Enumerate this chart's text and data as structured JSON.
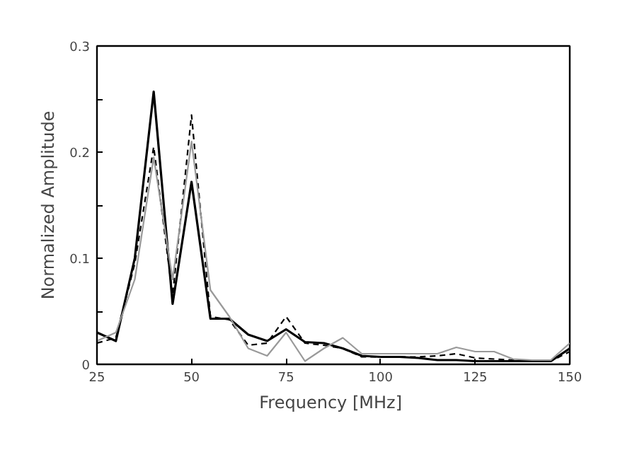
{
  "chart_data": {
    "type": "line",
    "xlabel": "Frequency  [MHz]",
    "ylabel": "Normalized Amplitude",
    "x": [
      25,
      30,
      35,
      40,
      45,
      50,
      55,
      60,
      65,
      70,
      75,
      80,
      85,
      90,
      95,
      100,
      105,
      110,
      115,
      120,
      125,
      130,
      135,
      140,
      145,
      150
    ],
    "xlim": [
      25,
      150
    ],
    "xticks": [
      25,
      50,
      75,
      100,
      125,
      150
    ],
    "ylim": [
      0,
      0.3
    ],
    "yticks": [
      0,
      {
        "value": 0.05,
        "label": null
      },
      0.1,
      {
        "value": 0.15,
        "label": null
      },
      0.2,
      {
        "value": 0.25,
        "label": null
      },
      0.3
    ],
    "grid": false,
    "marker": "none",
    "series": [
      {
        "color": "#000000",
        "line_style": "solid",
        "values": [
          0.03,
          0.022,
          0.1,
          0.257,
          0.057,
          0.172,
          0.043,
          0.043,
          0.028,
          0.022,
          0.033,
          0.021,
          0.02,
          0.015,
          0.008,
          0.007,
          0.007,
          0.006,
          0.004,
          0.004,
          0.003,
          0.003,
          0.003,
          0.003,
          0.003,
          0.015
        ]
      },
      {
        "color": "#000000",
        "line_style": "dashed",
        "values": [
          0.02,
          0.025,
          0.095,
          0.205,
          0.065,
          0.235,
          0.045,
          0.042,
          0.018,
          0.02,
          0.045,
          0.02,
          0.018,
          0.015,
          0.007,
          0.007,
          0.007,
          0.007,
          0.008,
          0.01,
          0.006,
          0.005,
          0.004,
          0.003,
          0.003,
          0.012
        ]
      },
      {
        "color": "#999999",
        "line_style": "solid",
        "values": [
          0.022,
          0.03,
          0.08,
          0.195,
          0.08,
          0.21,
          0.07,
          0.045,
          0.015,
          0.008,
          0.03,
          0.003,
          0.015,
          0.025,
          0.01,
          0.01,
          0.01,
          0.01,
          0.01,
          0.016,
          0.012,
          0.012,
          0.005,
          0.004,
          0.004,
          0.02
        ]
      }
    ]
  }
}
